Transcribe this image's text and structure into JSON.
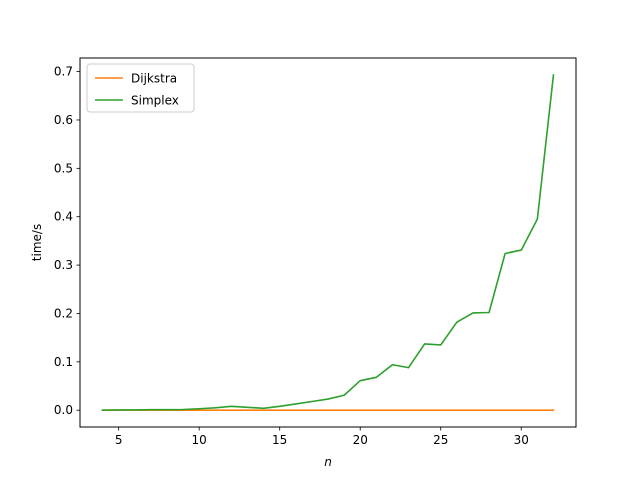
{
  "chart_data": {
    "type": "line",
    "title": "",
    "xlabel": "n",
    "ylabel": "time/s",
    "xlim": [
      2.6,
      33.4
    ],
    "ylim": [
      -0.0347,
      0.7281
    ],
    "xticks": [
      5,
      10,
      15,
      20,
      25,
      30
    ],
    "yticks": [
      0.0,
      0.1,
      0.2,
      0.3,
      0.4,
      0.5,
      0.6,
      0.7
    ],
    "xtick_labels": [
      "5",
      "10",
      "15",
      "20",
      "25",
      "30"
    ],
    "ytick_labels": [
      "0.0",
      "0.1",
      "0.2",
      "0.3",
      "0.4",
      "0.5",
      "0.6",
      "0.7"
    ],
    "grid": false,
    "legend_position": "top-left",
    "x": [
      4,
      5,
      6,
      7,
      8,
      9,
      10,
      11,
      12,
      13,
      14,
      15,
      16,
      17,
      18,
      19,
      20,
      21,
      22,
      23,
      24,
      25,
      26,
      27,
      28,
      29,
      30,
      31,
      32
    ],
    "series": [
      {
        "name": "Dijkstra",
        "color": "#ff7f0e",
        "values": [
          0,
          0,
          0,
          0,
          0,
          0,
          0,
          0,
          0,
          0,
          0,
          0,
          0,
          0,
          0,
          0,
          0,
          0,
          0,
          0,
          0,
          0,
          0,
          0,
          0,
          0,
          0,
          0,
          0
        ]
      },
      {
        "name": "Simplex",
        "color": "#2ca02c",
        "values": [
          0.0,
          0.0005,
          0.0005,
          0.001,
          0.001,
          0.0015,
          0.003,
          0.005,
          0.008,
          0.006,
          0.004,
          0.008,
          0.013,
          0.018,
          0.023,
          0.031,
          0.061,
          0.068,
          0.094,
          0.088,
          0.137,
          0.135,
          0.182,
          0.201,
          0.202,
          0.324,
          0.331,
          0.395,
          0.693
        ]
      }
    ]
  }
}
